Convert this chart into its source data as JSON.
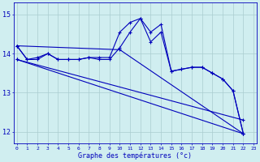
{
  "background_color": "#d0eef0",
  "line_color": "#0000bb",
  "grid_color": "#aaccd0",
  "xlabel": "Graphe des températures (°c)",
  "xlabel_color": "#0000bb",
  "tick_color": "#0000bb",
  "xlim_min": -0.3,
  "xlim_max": 23.3,
  "ylim_min": 11.7,
  "ylim_max": 15.3,
  "yticks": [
    12,
    13,
    14,
    15
  ],
  "xtick_labels": [
    "0",
    "1",
    "2",
    "3",
    "4",
    "5",
    "6",
    "7",
    "8",
    "9",
    "10",
    "11",
    "12",
    "13",
    "14",
    "15",
    "16",
    "17",
    "18",
    "19",
    "20",
    "21",
    "22",
    "23"
  ],
  "series1": {
    "x": [
      0,
      1,
      2,
      3,
      4,
      5,
      6,
      7,
      8,
      9,
      10,
      11,
      12,
      13,
      14,
      15,
      16,
      17,
      18,
      19,
      20,
      21,
      22
    ],
    "y": [
      14.2,
      13.85,
      13.9,
      14.0,
      13.85,
      13.85,
      13.85,
      13.9,
      13.9,
      13.9,
      14.55,
      14.8,
      14.9,
      14.55,
      14.75,
      13.55,
      13.6,
      13.65,
      13.65,
      13.5,
      13.35,
      13.05,
      11.95
    ]
  },
  "series2": {
    "x": [
      0,
      1,
      2,
      3,
      4,
      5,
      6,
      7,
      8,
      9,
      10,
      11,
      12,
      13,
      14,
      15,
      16,
      17,
      18,
      19,
      20,
      21,
      22
    ],
    "y": [
      14.2,
      13.85,
      13.85,
      14.0,
      13.85,
      13.85,
      13.85,
      13.9,
      13.85,
      13.85,
      14.15,
      14.55,
      14.9,
      14.3,
      14.55,
      13.55,
      13.6,
      13.65,
      13.65,
      13.5,
      13.35,
      13.05,
      11.95
    ]
  },
  "series3": {
    "x": [
      0,
      10,
      22
    ],
    "y": [
      14.2,
      14.1,
      11.95
    ]
  },
  "series4": {
    "x": [
      0,
      22
    ],
    "y": [
      13.85,
      11.95
    ]
  },
  "series5": {
    "x": [
      0,
      22
    ],
    "y": [
      13.85,
      12.3
    ]
  }
}
